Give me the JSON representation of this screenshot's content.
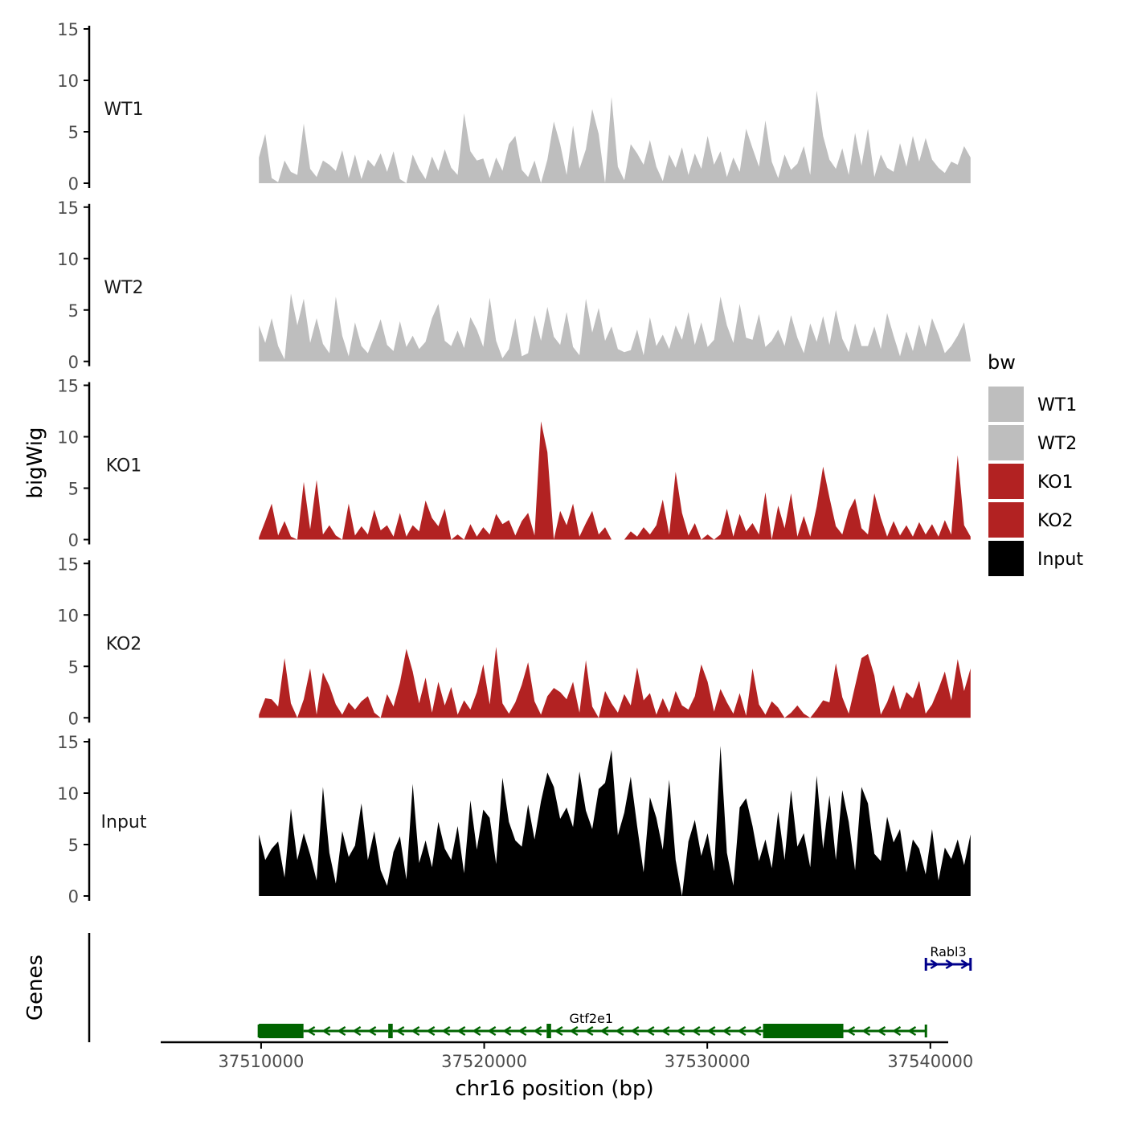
{
  "chart_data": {
    "type": "area",
    "title": "",
    "ylabel": "bigWig",
    "xlabel": "chr16 position (bp)",
    "genes_label": "Genes",
    "xlim": [
      37505500,
      37540800
    ],
    "ylim": [
      0,
      15
    ],
    "y_ticks": [
      0,
      5,
      10,
      15
    ],
    "x_ticks": [
      37510000,
      37520000,
      37530000,
      37540000
    ],
    "x_tick_labels": [
      "37510000",
      "37520000",
      "37530000",
      "37540000"
    ],
    "legend": {
      "title": "bw",
      "placement": "right",
      "entries": [
        {
          "label": "WT1",
          "color": "#bebebe"
        },
        {
          "label": "WT2",
          "color": "#bebebe"
        },
        {
          "label": "KO1",
          "color": "#b22222"
        },
        {
          "label": "KO2",
          "color": "#b22222"
        },
        {
          "label": "Input",
          "color": "#000000"
        }
      ]
    },
    "series": [
      {
        "name": "WT1",
        "color": "#bebebe",
        "x_start": 37509900,
        "x_end": 37541800,
        "values": [
          2.5,
          4.8,
          0.5,
          0.1,
          2.2,
          1.1,
          0.8,
          5.8,
          1.4,
          0.6,
          2.2,
          1.8,
          1.2,
          3.2,
          0.5,
          2.8,
          0.4,
          2.3,
          1.6,
          2.9,
          1.1,
          3.1,
          0.4,
          0,
          2.8,
          1.4,
          0.4,
          2.6,
          1.2,
          3.3,
          1.5,
          0.8,
          6.8,
          3.1,
          2.2,
          2.4,
          0.5,
          2.5,
          1.2,
          3.8,
          4.6,
          1.3,
          0.6,
          2.2,
          0,
          2.3,
          6.0,
          3.8,
          0.8,
          5.6,
          1.4,
          3.3,
          7.2,
          4.8,
          0,
          8.4,
          1.6,
          0.3,
          3.8,
          2.9,
          1.8,
          4.2,
          1.6,
          0.2,
          2.8,
          1.5,
          3.5,
          0.8,
          2.9,
          1.4,
          4.6,
          1.8,
          3.1,
          0.6,
          2.5,
          1.1,
          5.3,
          3.4,
          1.6,
          6.1,
          2.1,
          0.5,
          2.8,
          1.3,
          1.9,
          3.6,
          0.8,
          9.0,
          4.6,
          2.3,
          1.4,
          3.4,
          0.8,
          4.9,
          1.7,
          5.3,
          0.6,
          2.8,
          1.5,
          1.1,
          3.9,
          1.6,
          4.6,
          2.1,
          4.4,
          2.3,
          1.5,
          1.0,
          2.1,
          1.8,
          3.6,
          2.5
        ]
      },
      {
        "name": "WT2",
        "color": "#bebebe",
        "x_start": 37509900,
        "x_end": 37541800,
        "values": [
          3.5,
          1.8,
          4.2,
          1.5,
          0.2,
          6.6,
          3.5,
          6.1,
          1.8,
          4.2,
          1.7,
          0.8,
          6.3,
          2.5,
          0.5,
          3.8,
          1.5,
          0.8,
          2.4,
          4.1,
          1.6,
          1.0,
          3.9,
          1.4,
          2.5,
          1.2,
          1.9,
          4.2,
          5.6,
          2.0,
          1.5,
          3.0,
          1.3,
          4.3,
          3.1,
          1.4,
          6.2,
          2.0,
          0.3,
          1.2,
          4.2,
          0.5,
          0.8,
          4.5,
          2.0,
          5.3,
          2.4,
          1.6,
          4.8,
          1.4,
          0.6,
          6.1,
          2.8,
          5.2,
          2.0,
          3.4,
          1.2,
          0.9,
          1.1,
          3.1,
          0.6,
          4.3,
          1.5,
          2.6,
          1.2,
          3.5,
          2.1,
          4.8,
          1.6,
          3.8,
          1.4,
          2.1,
          6.3,
          3.5,
          1.8,
          5.6,
          2.3,
          2.1,
          4.6,
          1.4,
          2.0,
          3.1,
          1.5,
          4.5,
          2.3,
          0.8,
          3.7,
          1.9,
          4.4,
          1.6,
          5.0,
          2.2,
          0.9,
          3.7,
          1.5,
          1.5,
          3.4,
          1.2,
          4.7,
          2.5,
          0.5,
          2.9,
          1.0,
          3.6,
          1.4,
          4.2,
          2.6,
          0.8,
          1.5,
          2.5,
          3.8,
          0.2
        ]
      },
      {
        "name": "KO1",
        "color": "#b22222",
        "x_start": 37509900,
        "x_end": 37541800,
        "values": [
          0.2,
          1.8,
          3.5,
          0.4,
          1.8,
          0.3,
          0,
          5.6,
          1.0,
          5.8,
          0.5,
          1.4,
          0.4,
          0,
          3.5,
          0.4,
          1.3,
          0.5,
          2.9,
          0.9,
          1.4,
          0.3,
          2.6,
          0.3,
          1.4,
          0.8,
          3.8,
          2.1,
          1.3,
          3.0,
          0,
          0.5,
          0,
          1.5,
          0.3,
          1.2,
          0.5,
          2.5,
          1.5,
          1.9,
          0.4,
          1.8,
          2.6,
          0.4,
          11.5,
          8.5,
          0,
          2.8,
          1.4,
          3.5,
          0.3,
          1.6,
          2.8,
          0.5,
          1.2,
          0,
          0,
          0,
          0.8,
          0.3,
          1.2,
          0.5,
          1.4,
          3.9,
          0.5,
          6.6,
          2.6,
          0.4,
          1.6,
          0,
          0.5,
          0,
          0.5,
          3.0,
          0.3,
          2.5,
          0.8,
          1.6,
          0.5,
          4.6,
          0,
          3.3,
          1.1,
          4.5,
          0.3,
          2.3,
          0.3,
          3.2,
          7.1,
          4.1,
          1.3,
          0.5,
          2.8,
          4.0,
          1.1,
          0.5,
          4.5,
          2.1,
          0.3,
          1.8,
          0.4,
          1.4,
          0.3,
          1.7,
          0.5,
          1.5,
          0.3,
          1.9,
          0.5,
          8.2,
          1.4,
          0.3
        ]
      },
      {
        "name": "KO2",
        "color": "#b22222",
        "x_start": 37509900,
        "x_end": 37541800,
        "values": [
          0.3,
          1.9,
          1.8,
          1.1,
          5.8,
          1.4,
          0,
          1.8,
          4.8,
          0.3,
          4.4,
          3.1,
          1.3,
          0.3,
          1.5,
          0.8,
          1.6,
          2.1,
          0.5,
          0,
          2.3,
          1.1,
          3.4,
          6.7,
          4.5,
          1.4,
          3.9,
          0.5,
          3.5,
          1.2,
          3.0,
          0.3,
          1.7,
          0.8,
          2.5,
          5.2,
          1.3,
          6.9,
          1.4,
          0.4,
          1.5,
          3.2,
          5.4,
          1.6,
          0.3,
          2.1,
          2.9,
          2.5,
          1.8,
          3.5,
          0.5,
          5.6,
          1.1,
          0,
          2.6,
          1.4,
          0.5,
          2.3,
          1.2,
          4.9,
          1.7,
          2.4,
          0.3,
          1.9,
          0.5,
          2.6,
          1.2,
          0.8,
          2.1,
          5.2,
          3.5,
          0.6,
          2.8,
          1.5,
          0.4,
          2.4,
          0.2,
          4.8,
          1.3,
          0.3,
          1.6,
          1.0,
          0,
          0.5,
          1.2,
          0.4,
          0,
          0.8,
          1.7,
          1.5,
          5.3,
          2.0,
          0.4,
          3.1,
          5.8,
          6.2,
          4.1,
          0.3,
          1.5,
          3.2,
          0.8,
          2.5,
          1.9,
          3.6,
          0.4,
          1.3,
          2.8,
          4.5,
          1.7,
          5.7,
          2.6,
          4.8
        ]
      },
      {
        "name": "Input",
        "color": "#000000",
        "x_start": 37509900,
        "x_end": 37541800,
        "values": [
          6.0,
          3.5,
          4.6,
          5.3,
          1.8,
          8.5,
          3.5,
          6.1,
          4.0,
          1.5,
          10.6,
          4.2,
          1.2,
          6.3,
          3.8,
          4.9,
          9.0,
          3.5,
          6.3,
          2.5,
          1.0,
          4.3,
          5.8,
          1.6,
          10.9,
          3.2,
          5.4,
          2.8,
          7.2,
          4.6,
          3.5,
          6.8,
          2.2,
          9.3,
          4.5,
          8.4,
          7.6,
          3.1,
          11.5,
          7.2,
          5.4,
          4.8,
          8.9,
          5.5,
          9.2,
          12.0,
          10.6,
          7.5,
          8.6,
          6.7,
          12.1,
          8.3,
          6.5,
          10.4,
          11.0,
          14.2,
          5.9,
          8.1,
          11.6,
          6.8,
          2.3,
          9.6,
          7.6,
          4.5,
          11.3,
          3.5,
          0,
          5.3,
          7.4,
          3.9,
          6.1,
          2.4,
          14.6,
          4.2,
          1.0,
          8.6,
          9.5,
          6.8,
          3.4,
          5.5,
          2.7,
          8.2,
          3.5,
          10.3,
          4.8,
          6.1,
          2.8,
          11.7,
          4.6,
          9.8,
          3.5,
          10.3,
          7.2,
          2.5,
          10.6,
          9.0,
          4.1,
          3.4,
          7.7,
          5.2,
          6.5,
          2.3,
          5.5,
          4.6,
          2.1,
          6.5,
          1.5,
          4.7,
          3.6,
          5.5,
          3.0,
          6.0
        ]
      }
    ],
    "genes": [
      {
        "name": "Gtf2e1",
        "color": "#006400",
        "strand": "-",
        "start": 37509900,
        "end": 37539800,
        "exons": [
          [
            37509900,
            37511900
          ],
          [
            37515700,
            37515900
          ],
          [
            37522800,
            37523000
          ],
          [
            37532500,
            37536100
          ]
        ],
        "introns": [
          [
            37511900,
            37515700
          ],
          [
            37515900,
            37522800
          ],
          [
            37523000,
            37532500
          ],
          [
            37536100,
            37539800
          ]
        ],
        "label_x": 37524800
      },
      {
        "name": "Rabl3",
        "color": "#00008b",
        "strand": "+",
        "start": 37539800,
        "end": 37541800,
        "exons": [],
        "introns": [
          [
            37539800,
            37541800
          ]
        ],
        "label_x": 37540800
      }
    ]
  }
}
